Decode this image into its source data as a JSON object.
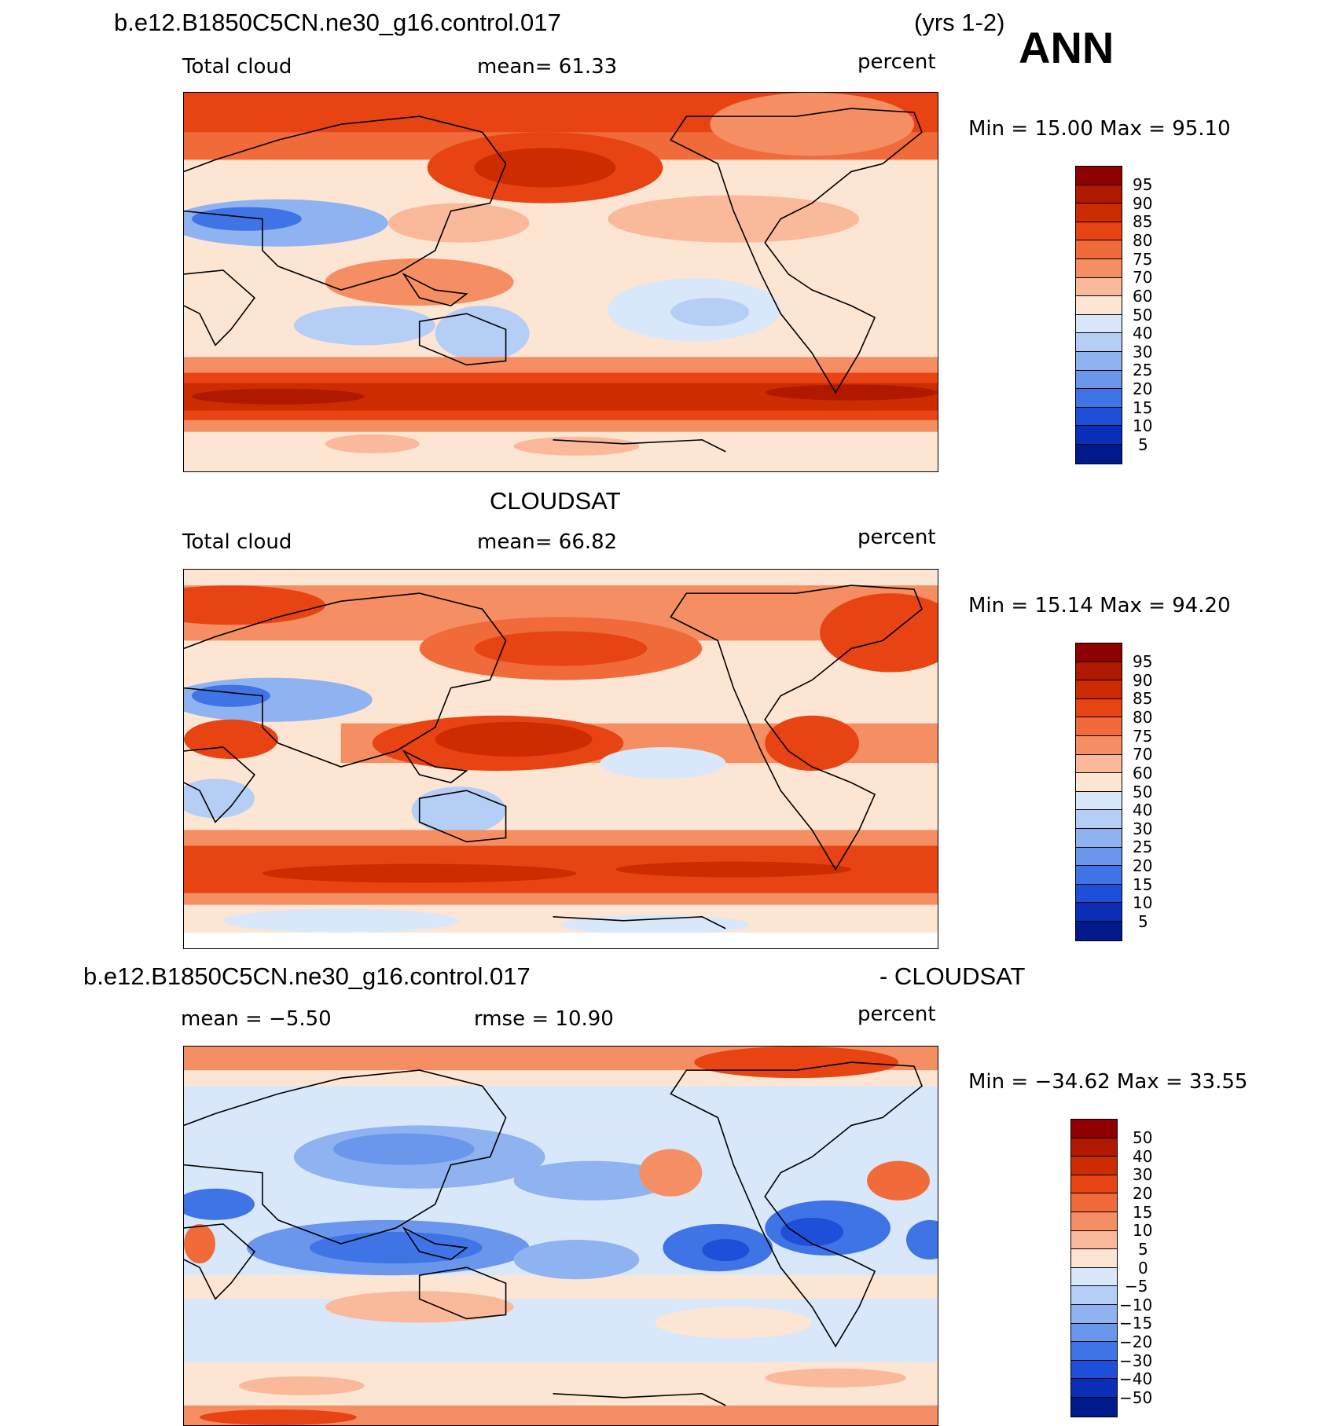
{
  "header": {
    "case_name": "b.e12.B1850C5CN.ne30_g16.control.017",
    "years": "(yrs 1-2)",
    "season": "ANN"
  },
  "panels": [
    {
      "title": "",
      "left_label": "Total cloud",
      "center_label": "mean=   61.33",
      "right_label": "percent",
      "minmax": "Min =   15.00  Max =   95.10",
      "colorbar_labels": [
        "95",
        "90",
        "85",
        "80",
        "75",
        "70",
        "60",
        "50",
        "40",
        "30",
        "25",
        "20",
        "15",
        "10",
        "5"
      ],
      "fill_colors": [
        "#8f0000",
        "#b01800",
        "#cc2c00",
        "#e84313",
        "#f06a3a",
        "#f58e63",
        "#fab99b",
        "#fde5d4",
        "#d8e7fa",
        "#b5cef5",
        "#8fb3f0",
        "#6a97ec",
        "#3f74e6",
        "#1e4fd8",
        "#0a2eb8",
        "#001a8c"
      ]
    },
    {
      "title": "CLOUDSAT",
      "left_label": "Total cloud",
      "center_label": "mean=   66.82",
      "right_label": "percent",
      "minmax": "Min =   15.14  Max =   94.20",
      "colorbar_labels": [
        "95",
        "90",
        "85",
        "80",
        "75",
        "70",
        "60",
        "50",
        "40",
        "30",
        "25",
        "20",
        "15",
        "10",
        "5"
      ],
      "fill_colors": [
        "#8f0000",
        "#b01800",
        "#cc2c00",
        "#e84313",
        "#f06a3a",
        "#f58e63",
        "#fab99b",
        "#fde5d4",
        "#d8e7fa",
        "#b5cef5",
        "#8fb3f0",
        "#6a97ec",
        "#3f74e6",
        "#1e4fd8",
        "#0a2eb8",
        "#001a8c"
      ]
    },
    {
      "title_left": "b.e12.B1850C5CN.ne30_g16.control.017",
      "title_right": "- CLOUDSAT",
      "left_label": "mean =   −5.50",
      "center_label": "rmse =   10.90",
      "right_label": "percent",
      "minmax": "Min = −34.62  Max =   33.55",
      "colorbar_labels": [
        "50",
        "40",
        "30",
        "20",
        "15",
        "10",
        "5",
        "0",
        "−5",
        "−10",
        "−15",
        "−20",
        "−30",
        "−40",
        "−50"
      ],
      "fill_colors": [
        "#8f0000",
        "#b01800",
        "#cc2c00",
        "#e84313",
        "#f06a3a",
        "#f58e63",
        "#fab99b",
        "#fde5d4",
        "#d8e7fa",
        "#b5cef5",
        "#8fb3f0",
        "#6a97ec",
        "#3f74e6",
        "#1e4fd8",
        "#0a2eb8",
        "#001a8c"
      ]
    }
  ]
}
